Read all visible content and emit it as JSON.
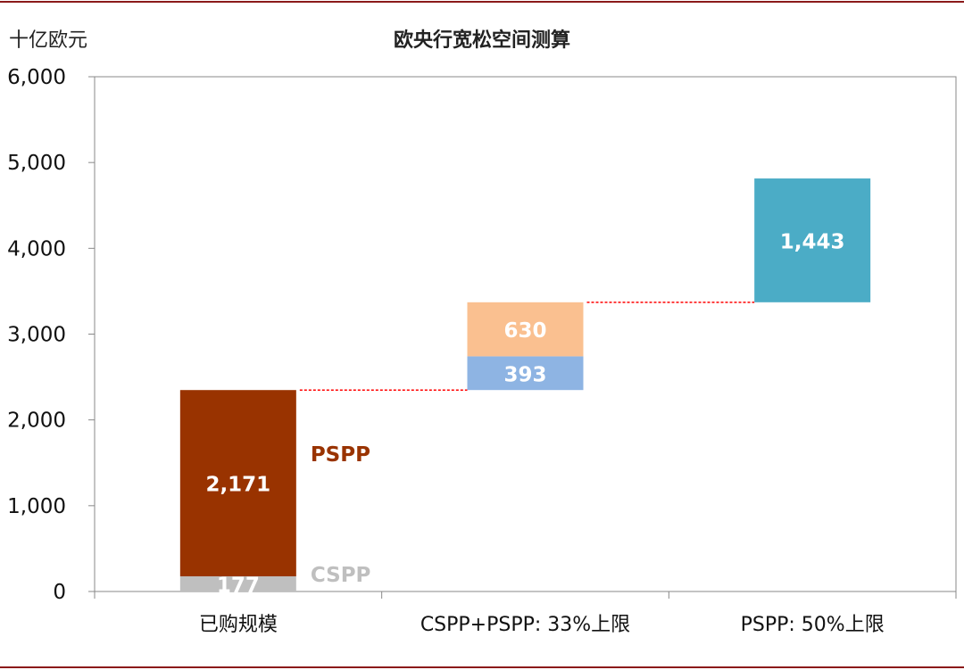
{
  "header": {
    "unit": "十亿欧元",
    "title": "欧央行宽松空间测算"
  },
  "chart_data": {
    "type": "bar",
    "subtype": "waterfall",
    "title": "欧央行宽松空间测算",
    "ylabel": "十亿欧元",
    "ylim": [
      0,
      6000
    ],
    "yticks": [
      0,
      1000,
      2000,
      3000,
      4000,
      5000,
      6000
    ],
    "ytick_labels": [
      "0",
      "1,000",
      "2,000",
      "3,000",
      "4,000",
      "5,000",
      "6,000"
    ],
    "categories": [
      "已购规模",
      "CSPP+PSPP: 33%上限",
      "PSPP: 50%上限"
    ],
    "segments": [
      {
        "category_index": 0,
        "base": 0,
        "value": 177,
        "label": "177",
        "color": "#BFBFBF"
      },
      {
        "category_index": 0,
        "base": 177,
        "value": 2171,
        "label": "2,171",
        "color": "#993300"
      },
      {
        "category_index": 1,
        "base": 2348,
        "value": 393,
        "label": "393",
        "color": "#8EB4E3"
      },
      {
        "category_index": 1,
        "base": 2741,
        "value": 630,
        "label": "630",
        "color": "#FAC090"
      },
      {
        "category_index": 2,
        "base": 3371,
        "value": 1443,
        "label": "1,443",
        "color": "#4BACC6"
      }
    ],
    "series_labels": [
      {
        "text": "PSPP",
        "category_index": 0,
        "value": 1600,
        "color": "#993300"
      },
      {
        "text": "CSPP",
        "category_index": 0,
        "value": 200,
        "color": "#BFBFBF"
      }
    ],
    "connectors": [
      {
        "from_category": 0,
        "to_category": 1,
        "value": 2348
      },
      {
        "from_category": 1,
        "to_category": 2,
        "value": 3371
      }
    ],
    "grid": false,
    "connector_color": "#FF0000"
  }
}
